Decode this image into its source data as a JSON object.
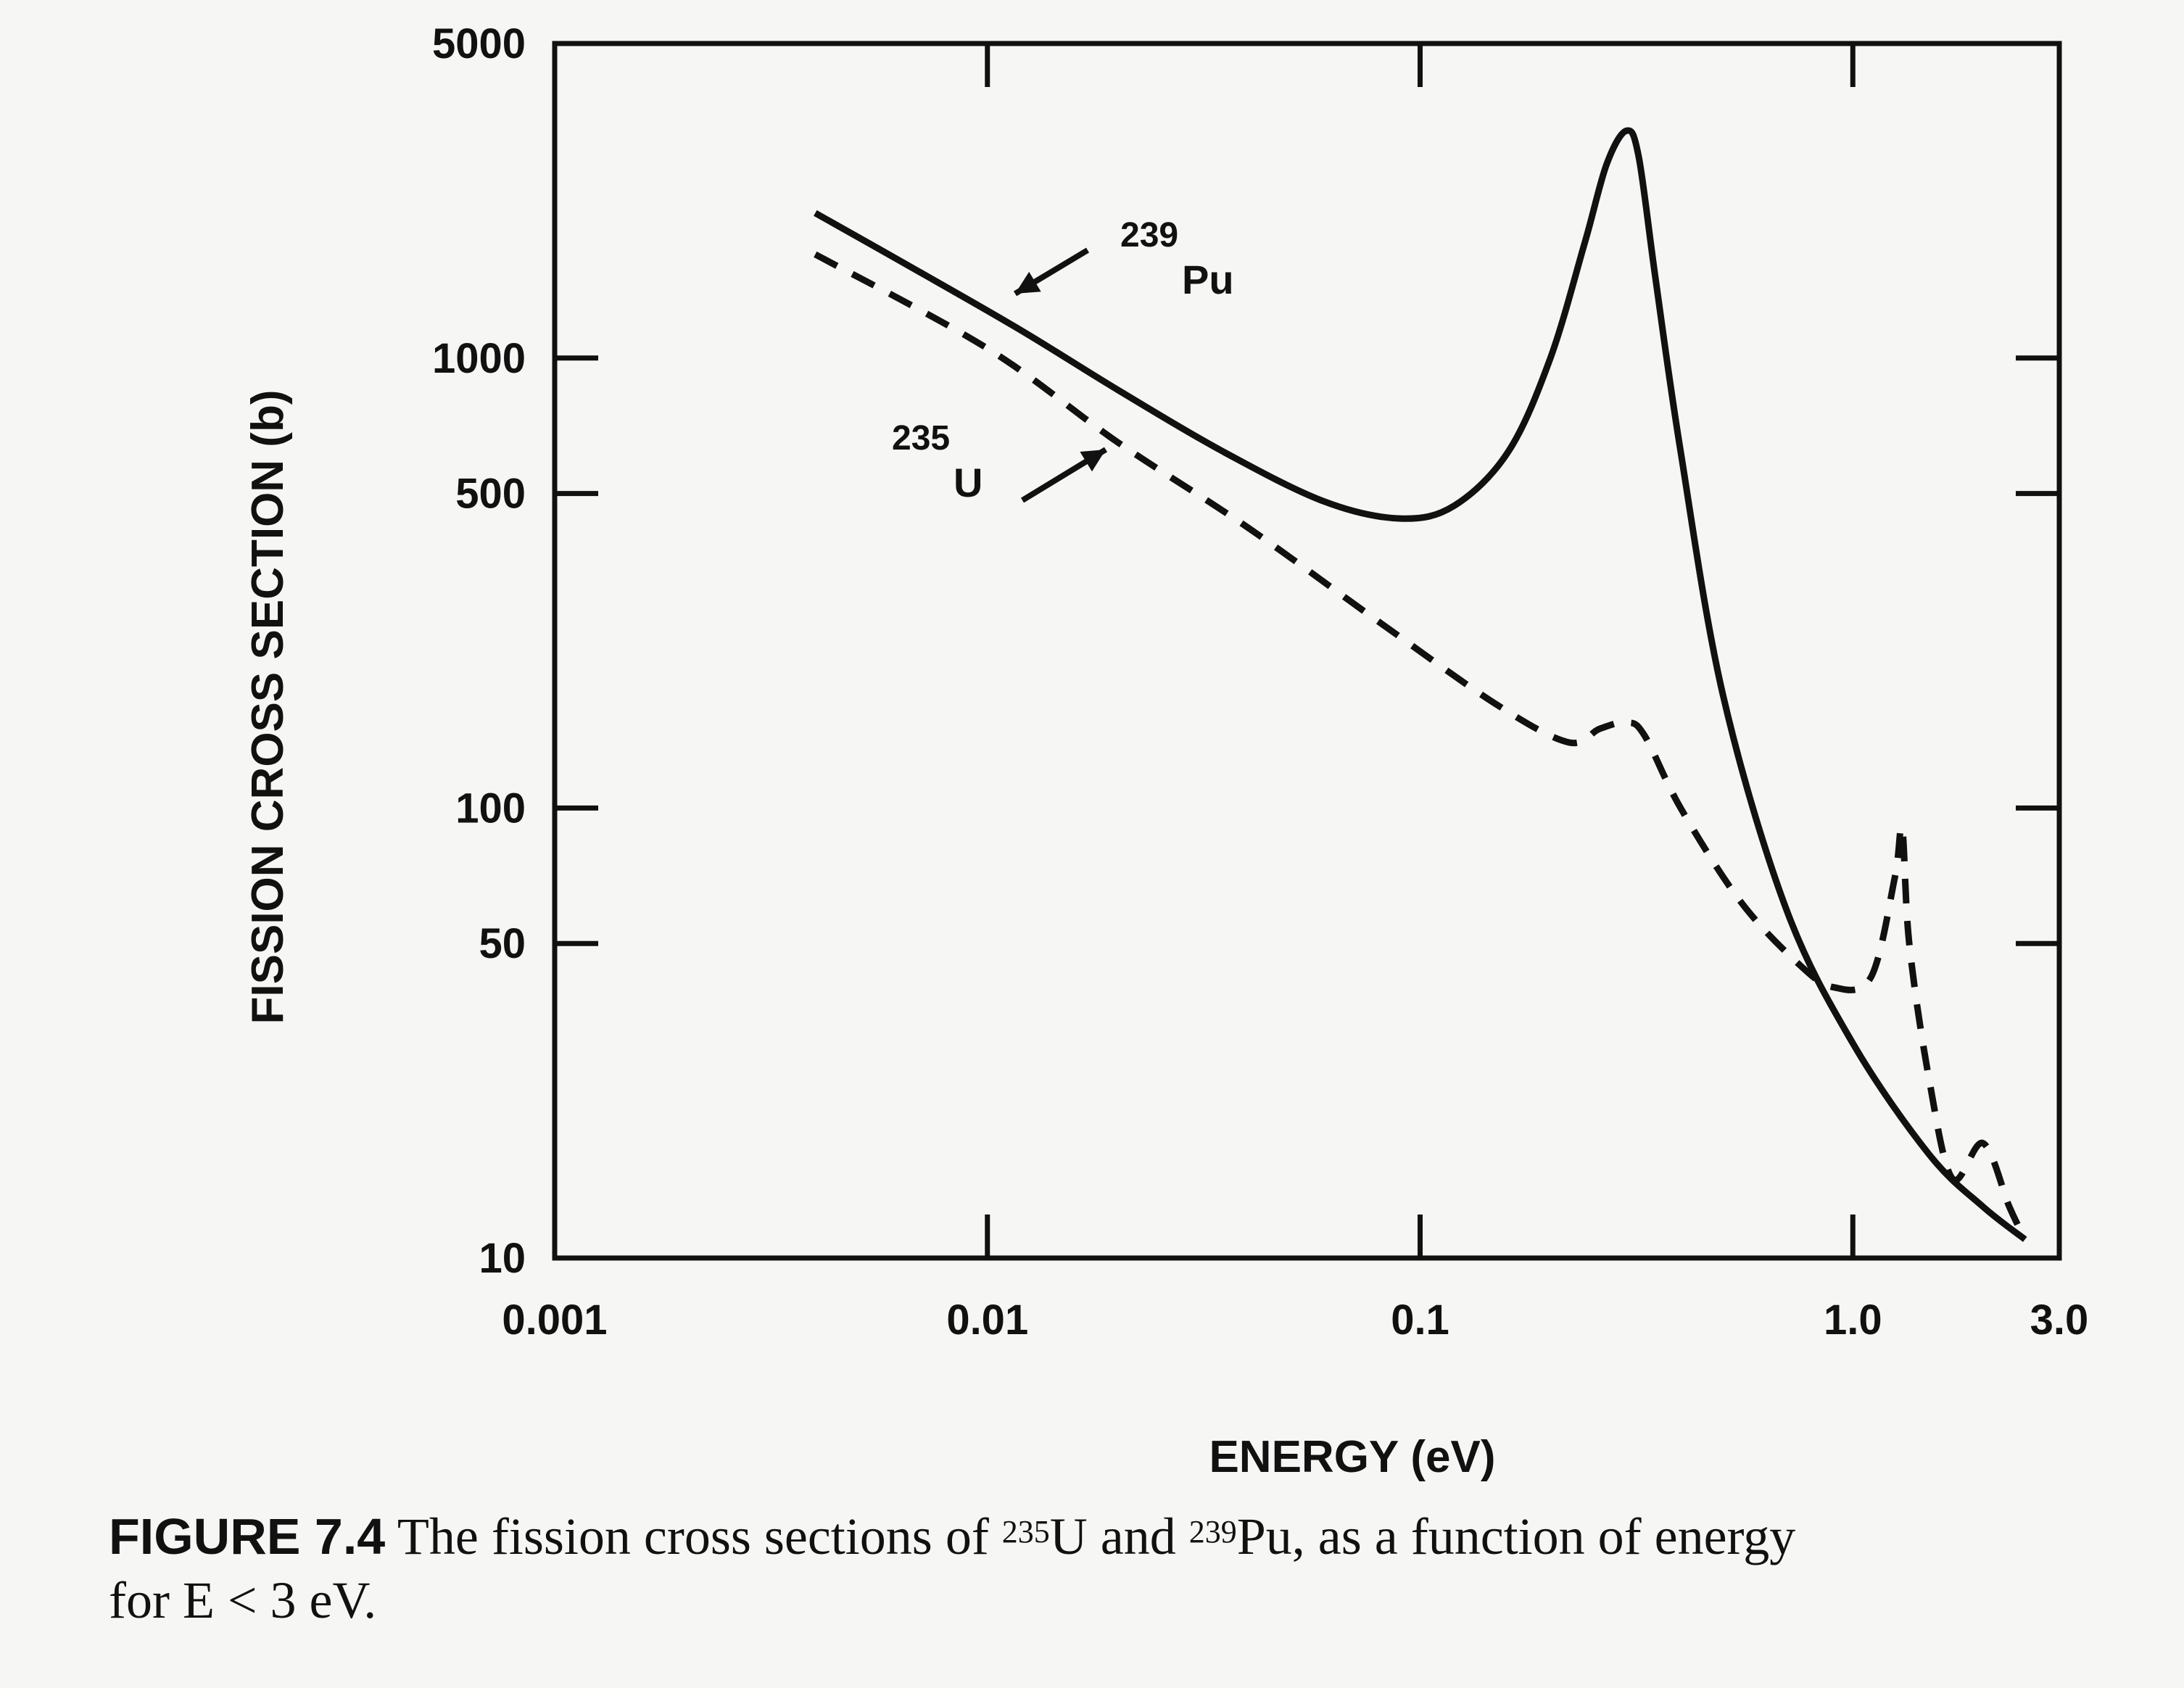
{
  "chart_data": {
    "type": "line",
    "xscale": "log",
    "yscale": "log",
    "xlim": [
      0.001,
      3.0
    ],
    "ylim": [
      10,
      5000
    ],
    "xlabel": "ENERGY (eV)",
    "ylabel": "FISSION CROSS SECTION (b)",
    "x_ticks": [
      {
        "value": 0.001,
        "label": "0.001"
      },
      {
        "value": 0.01,
        "label": "0.01"
      },
      {
        "value": 0.1,
        "label": "0.1"
      },
      {
        "value": 1.0,
        "label": "1.0"
      },
      {
        "value": 3.0,
        "label": "3.0"
      }
    ],
    "y_ticks": [
      {
        "value": 5000,
        "label": "5000"
      },
      {
        "value": 1000,
        "label": "1000"
      },
      {
        "value": 500,
        "label": "500"
      },
      {
        "value": 100,
        "label": "100"
      },
      {
        "value": 50,
        "label": "50"
      },
      {
        "value": 10,
        "label": "10"
      }
    ],
    "series": [
      {
        "label_mass": "239",
        "label_symbol": "Pu",
        "style": "solid",
        "x": [
          0.004,
          0.007,
          0.012,
          0.02,
          0.035,
          0.06,
          0.09,
          0.12,
          0.16,
          0.2,
          0.24,
          0.27,
          0.3,
          0.32,
          0.35,
          0.4,
          0.5,
          0.7,
          1.0,
          1.5,
          2.0,
          2.5
        ],
        "y": [
          2100,
          1550,
          1150,
          850,
          620,
          480,
          440,
          470,
          620,
          1000,
          1800,
          2700,
          3200,
          2800,
          1500,
          620,
          180,
          60,
          30,
          17,
          13,
          11
        ]
      },
      {
        "label_mass": "235",
        "label_symbol": "U",
        "style": "dashed",
        "x": [
          0.004,
          0.01,
          0.02,
          0.04,
          0.08,
          0.15,
          0.22,
          0.26,
          0.3,
          0.33,
          0.4,
          0.55,
          0.75,
          0.9,
          1.1,
          1.25,
          1.3,
          1.35,
          1.5,
          1.7,
          2.0,
          2.3,
          2.5
        ],
        "y": [
          1700,
          1050,
          650,
          420,
          260,
          170,
          140,
          150,
          155,
          145,
          100,
          62,
          45,
          40,
          42,
          70,
          90,
          50,
          25,
          15,
          18,
          13,
          11
        ]
      }
    ]
  },
  "caption": {
    "figure_number": "FIGURE 7.4",
    "text_1": " The fission cross sections of ",
    "sup_1": "235",
    "text_2": "U and ",
    "sup_2": "239",
    "text_3": "Pu, as a function of energy",
    "line_2": "for E < 3 eV."
  }
}
